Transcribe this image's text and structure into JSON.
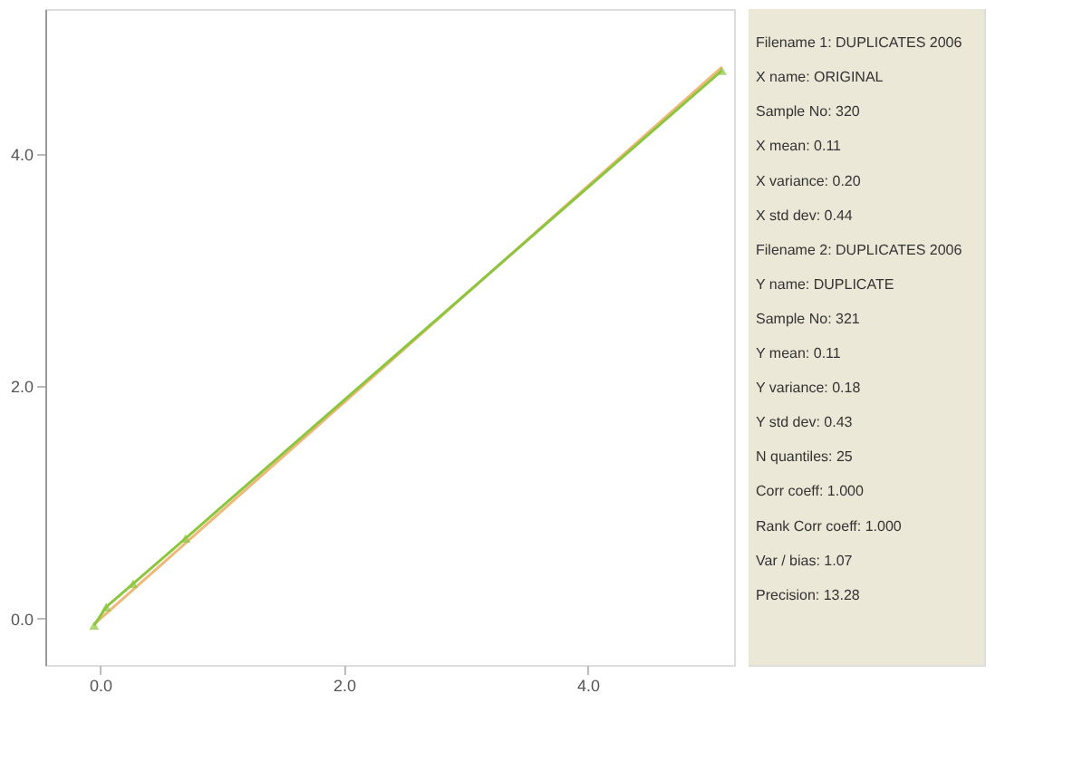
{
  "chart_data": {
    "type": "line",
    "xlim": [
      -0.45,
      5.2
    ],
    "ylim": [
      -0.4,
      5.25
    ],
    "xticks": [
      {
        "value": 0,
        "label": "0.0"
      },
      {
        "value": 2,
        "label": "2.0"
      },
      {
        "value": 4,
        "label": "4.0"
      }
    ],
    "yticks": [
      {
        "value": 0,
        "label": "0.0"
      },
      {
        "value": 2,
        "label": "2.0"
      },
      {
        "value": 4,
        "label": "4.0"
      }
    ],
    "line_style": "solid",
    "series": [
      {
        "color": "#f0b878",
        "x": [
          -0.05,
          5.1
        ],
        "values": [
          -0.05,
          4.75
        ]
      },
      {
        "color": "#8cc63f",
        "marker": "triangle",
        "x": [
          -0.05,
          0.05,
          0.27,
          0.7,
          5.1
        ],
        "values": [
          -0.06,
          0.1,
          0.3,
          0.69,
          4.72
        ]
      }
    ],
    "annotations": [
      "Filename 1:  DUPLICATES 2006",
      "X name:  ORIGINAL",
      "Sample No:  320",
      "X mean:  0.11",
      "X variance:  0.20",
      "X std dev:  0.44",
      "Filename 2:  DUPLICATES 2006",
      "Y name:  DUPLICATE",
      "Sample No:  321",
      "Y mean:  0.11",
      "Y variance:  0.18",
      "Y std dev:  0.43",
      "N quantiles:  25",
      "Corr coeff:  1.000",
      "Rank Corr coeff:  1.000",
      "Var / bias:  1.07",
      "Precision:  13.28"
    ]
  }
}
